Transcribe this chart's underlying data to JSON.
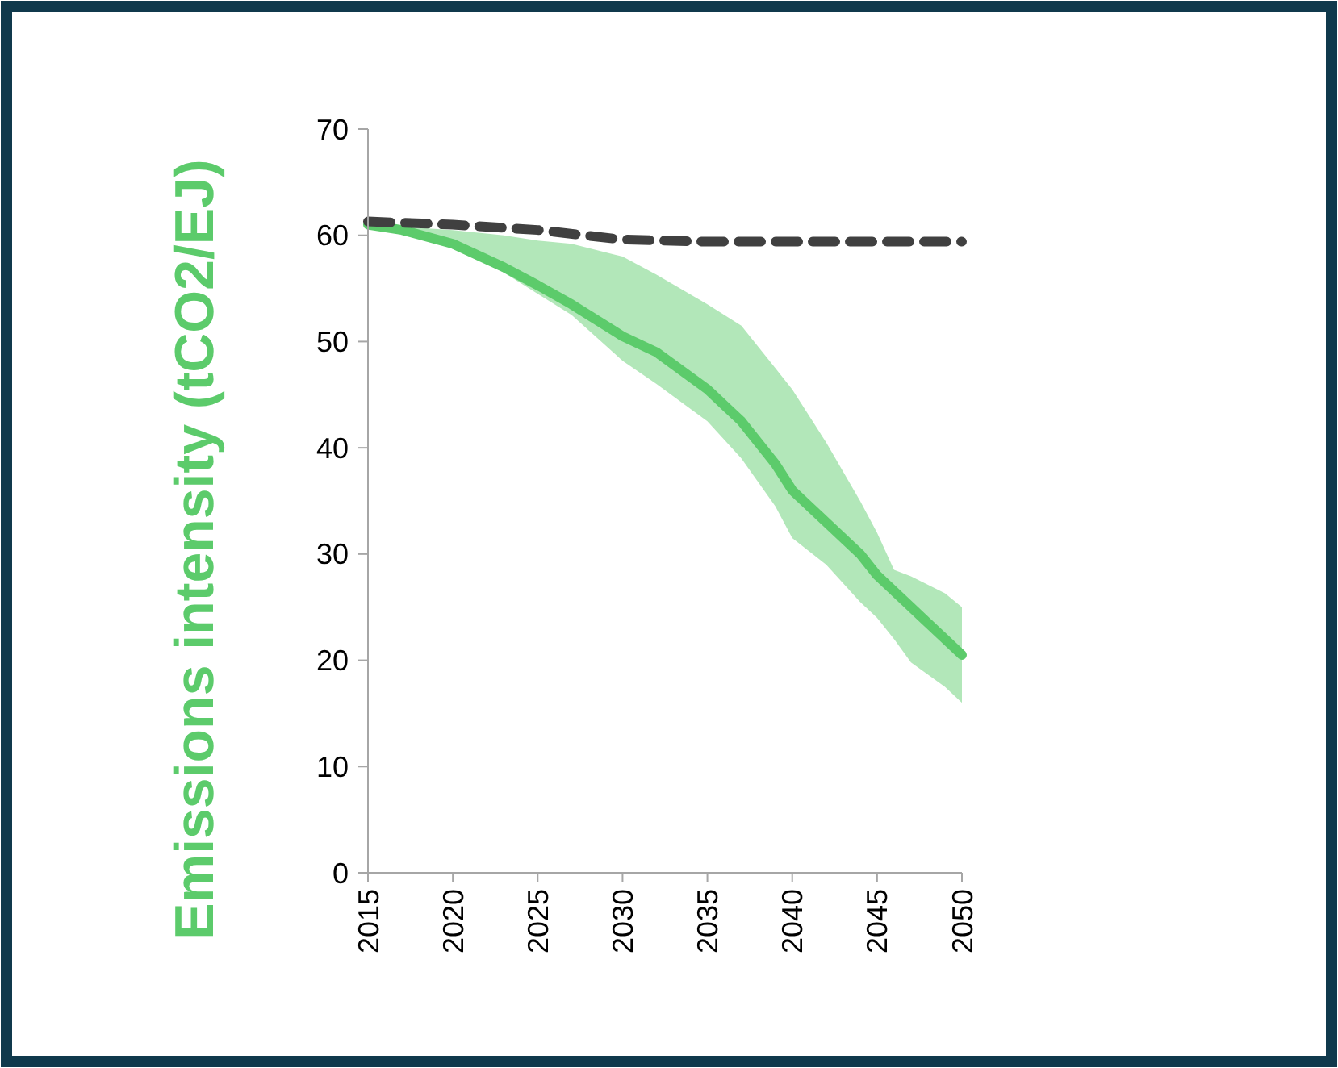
{
  "chart_data": {
    "type": "line",
    "ylabel": "Emissions intensity (tCO2/EJ)",
    "xlim": [
      2015,
      2050
    ],
    "xticks": [
      2015,
      2020,
      2025,
      2030,
      2035,
      2040,
      2045,
      2050
    ],
    "ylim": [
      0,
      70
    ],
    "yticks": [
      0,
      10,
      20,
      30,
      40,
      50,
      60,
      70
    ],
    "grid": false,
    "marker": "none",
    "series": [
      {
        "color": "#404040",
        "line_style": "dashed",
        "x": [
          2015,
          2020,
          2025,
          2030,
          2035,
          2040,
          2045,
          2050
        ],
        "values": [
          61.3,
          61,
          60.5,
          59.6,
          59.4,
          59.4,
          59.4,
          59.4
        ]
      },
      {
        "color": "#5ccb6b",
        "line_style": "solid",
        "x": [
          2015,
          2017,
          2020,
          2023,
          2025,
          2027,
          2030,
          2032,
          2035,
          2037,
          2039,
          2040,
          2042,
          2044,
          2045,
          2046,
          2047,
          2049,
          2050
        ],
        "values": [
          61,
          60.5,
          59.2,
          57,
          55.3,
          53.5,
          50.5,
          49,
          45.5,
          42.5,
          38.5,
          36,
          33,
          30,
          28,
          26.5,
          25,
          22,
          20.5
        ],
        "lower": [
          61,
          60.7,
          59,
          56.5,
          54.5,
          52.5,
          48.2,
          46,
          42.5,
          39,
          34.5,
          31.5,
          29,
          25.5,
          24,
          22,
          19.8,
          17.5,
          16
        ],
        "upper": [
          61,
          60.8,
          60.5,
          60,
          59.5,
          59.2,
          58,
          56.3,
          53.5,
          51.5,
          47.5,
          45.5,
          40.5,
          35,
          32,
          28.5,
          27.9,
          26.3,
          25
        ]
      }
    ]
  }
}
